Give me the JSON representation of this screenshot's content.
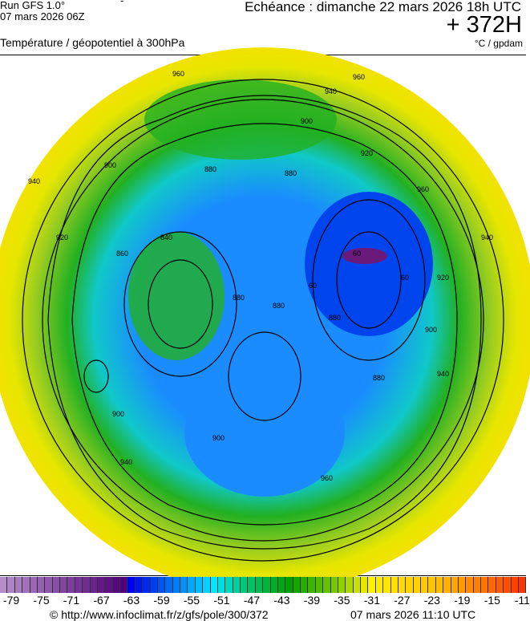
{
  "header": {
    "run": "Run GFS 1.0°",
    "run_date": "07 mars 2026 06Z",
    "dash": "-",
    "echeance": "Echéance : dimanche 22 mars 2026 18h UTC",
    "lead": "+ 372H",
    "title": "Température / géopotentiel à 300hPa",
    "units": "°C / gpdam"
  },
  "map": {
    "contour_labels": [
      "960",
      "940",
      "920",
      "900",
      "880",
      "860",
      "840",
      "960",
      "940",
      "920",
      "900",
      "880",
      "900",
      "940",
      "960",
      "60",
      "60",
      "60",
      "880",
      "900",
      "920",
      "940",
      "960",
      "940",
      "880",
      "880",
      "880",
      "900"
    ],
    "colors": {
      "outer": "#e6e600",
      "band": "#22b022",
      "inner": "#1a8cff",
      "core": "#0022ee",
      "min": "#6a1a7a"
    }
  },
  "colorbar": {
    "min": -80,
    "max": -10,
    "step": 1,
    "labels": [
      "-79",
      "-75",
      "-71",
      "-67",
      "-63",
      "-59",
      "-55",
      "-51",
      "-47",
      "-43",
      "-39",
      "-35",
      "-31",
      "-27",
      "-23",
      "-19",
      "-15",
      "-11"
    ]
  },
  "footer": {
    "source": "© http://www.infoclimat.fr/z/gfs/pole/300/372",
    "generated": "07 mars 2026 11:10 UTC"
  }
}
